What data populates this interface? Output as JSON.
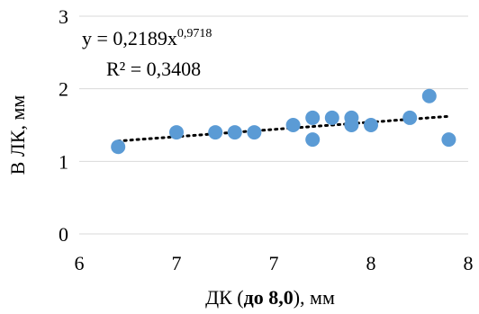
{
  "chart_data": {
    "type": "scatter",
    "title": "",
    "xlabel": "ДК (до 8,0), мм",
    "xlabel_plain": "ДК (",
    "xlabel_bold": "до 8,0",
    "xlabel_tail": "), мм",
    "ylabel": "В ЛК, мм",
    "xlim": [
      6,
      8
    ],
    "ylim": [
      0,
      3
    ],
    "x_tick_labels": [
      "6",
      "7",
      "7",
      "8",
      "8"
    ],
    "y_tick_labels": [
      "0",
      "1",
      "2",
      "3"
    ],
    "y_ticks": [
      0,
      1,
      2,
      3
    ],
    "grid": true,
    "legend": "none",
    "point_color": "#5b9bd5",
    "series": [
      {
        "values": [
          {
            "x": 6.2,
            "y": 1.2
          },
          {
            "x": 6.5,
            "y": 1.4
          },
          {
            "x": 6.7,
            "y": 1.4
          },
          {
            "x": 6.8,
            "y": 1.4
          },
          {
            "x": 6.9,
            "y": 1.4
          },
          {
            "x": 7.1,
            "y": 1.5
          },
          {
            "x": 7.2,
            "y": 1.6
          },
          {
            "x": 7.2,
            "y": 1.3
          },
          {
            "x": 7.3,
            "y": 1.6
          },
          {
            "x": 7.4,
            "y": 1.6
          },
          {
            "x": 7.4,
            "y": 1.5
          },
          {
            "x": 7.5,
            "y": 1.5
          },
          {
            "x": 7.7,
            "y": 1.6
          },
          {
            "x": 7.8,
            "y": 1.9
          },
          {
            "x": 7.9,
            "y": 1.3
          }
        ]
      }
    ],
    "trendline": {
      "type": "power",
      "a": 0.2189,
      "b": 0.9718,
      "x_start": 6.2,
      "x_end": 7.9,
      "y_start": 1.28,
      "y_end": 1.62
    },
    "equation_text": "y = 0,2189x",
    "equation_exponent": "0,9718",
    "r2_text": "R² = 0,3408"
  }
}
